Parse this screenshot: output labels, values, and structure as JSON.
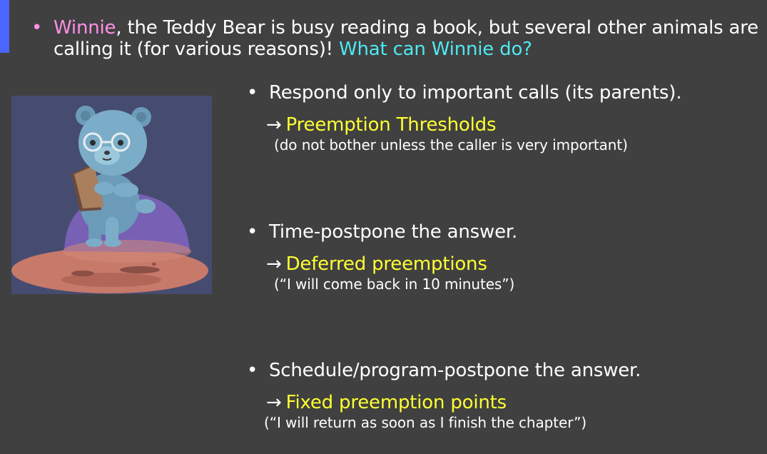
{
  "intro": {
    "bullet": "•",
    "name": "Winnie",
    "rest": ", the Teddy Bear is busy reading a book, but several other animals are calling it (for various reasons)! ",
    "question": "What can Winnie do?"
  },
  "illustration": {
    "icon": "teddy-bear-reading-icon"
  },
  "items": [
    {
      "bullet": "•",
      "text": "Respond only to important calls (its parents).",
      "arrow": "→",
      "term": "Preemption Thresholds",
      "note": "(do not bother unless the caller is very important)"
    },
    {
      "bullet": "•",
      "text": "Time-postpone the answer.",
      "arrow": "→",
      "term": "Deferred preemptions",
      "note": "(“I will come back in 10 minutes”)"
    },
    {
      "bullet": "•",
      "text": "Schedule/program-postpone the answer.",
      "arrow": "→",
      "term": "Fixed preemption points",
      "note": "(“I will return as soon as I finish the chapter”)"
    }
  ],
  "colors": {
    "background": "#404040",
    "accent_bar": "#4a66ff",
    "name": "#ff8fe6",
    "question": "#4fe8f0",
    "term": "#ffff33"
  }
}
